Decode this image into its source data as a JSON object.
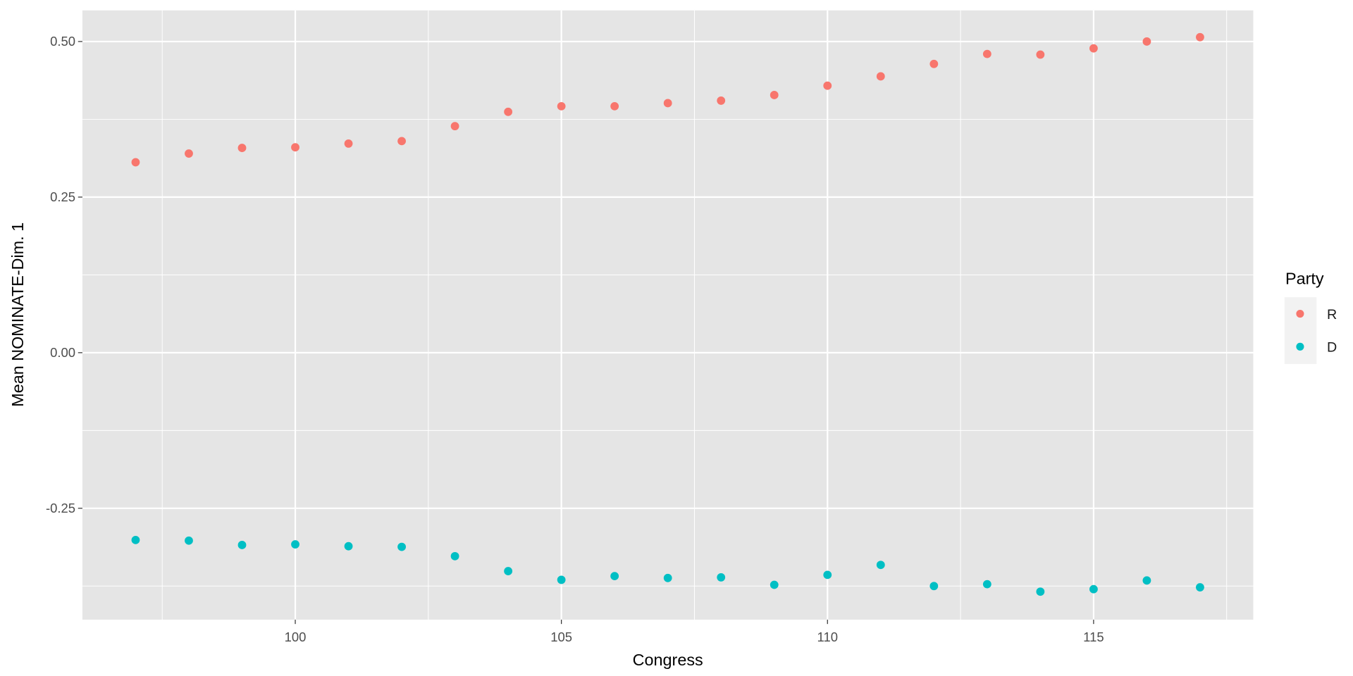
{
  "chart_data": {
    "type": "scatter",
    "title": "",
    "xlabel": "Congress",
    "ylabel": "Mean NOMINATE-Dim. 1",
    "xlim": [
      96,
      118
    ],
    "ylim": [
      -0.429,
      0.55
    ],
    "x_ticks": [
      100,
      105,
      110,
      115
    ],
    "x_tick_labels": [
      "100",
      "105",
      "110",
      "115"
    ],
    "y_ticks": [
      0.5,
      0.25,
      0,
      -0.25
    ],
    "y_tick_labels": [
      "0.50",
      "0.25",
      "0.00",
      "-0.25"
    ],
    "grid": true,
    "legend": {
      "title": "Party",
      "placement": "right"
    },
    "x": [
      97,
      98,
      99,
      100,
      101,
      102,
      103,
      104,
      105,
      106,
      107,
      108,
      109,
      110,
      111,
      112,
      113,
      114,
      115,
      116,
      117
    ],
    "series": [
      {
        "name": "R",
        "color": "#F8766D",
        "values": [
          0.306,
          0.32,
          0.329,
          0.33,
          0.336,
          0.34,
          0.364,
          0.387,
          0.396,
          0.396,
          0.401,
          0.405,
          0.414,
          0.429,
          0.444,
          0.464,
          0.48,
          0.479,
          0.489,
          0.5,
          0.507
        ]
      },
      {
        "name": "D",
        "color": "#00BFC4",
        "values": [
          -0.301,
          -0.302,
          -0.309,
          -0.308,
          -0.311,
          -0.312,
          -0.327,
          -0.351,
          -0.365,
          -0.359,
          -0.362,
          -0.361,
          -0.373,
          -0.357,
          -0.341,
          -0.375,
          -0.372,
          -0.384,
          -0.38,
          -0.366,
          -0.377
        ]
      }
    ]
  }
}
